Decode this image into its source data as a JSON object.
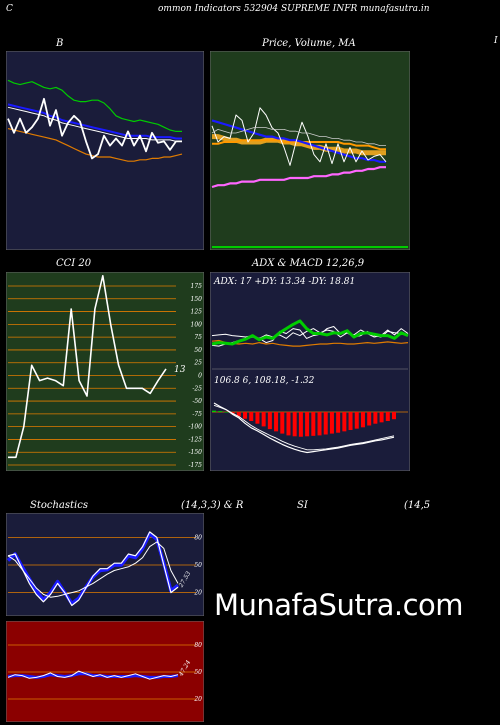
{
  "header": {
    "left": "C",
    "title": "ommon  Indicators 532904  SUPREME INFR munafasutra.in",
    "right": "I"
  },
  "labels": {
    "bb": "B",
    "price": "Price,  Volume,  MA",
    "cci": "CCI 20",
    "adx_macd": "ADX  & MACD 12,26,9",
    "stoch_left": "Stochastics",
    "stoch_mid": "(14,3,3) & R",
    "rsi_mid": "SI",
    "rsi_right": "(14,5"
  },
  "watermark": "MunafaSutra.com",
  "colors": {
    "navy": "#1a1c3a",
    "dark_green": "#1f3c1d",
    "dark_red": "#8b0000",
    "orange": "#e07b00",
    "green_line": "#00cc00",
    "blue_line": "#1a1aff",
    "white": "#ffffff"
  },
  "chart_data": [
    {
      "type": "line",
      "panel": "bollinger",
      "title": "B",
      "ylim": [
        0,
        100
      ],
      "series": [
        {
          "values": [
            85,
            83,
            82,
            83,
            84,
            82,
            80,
            79,
            80,
            78,
            74,
            71,
            70,
            70,
            71,
            71,
            69,
            65,
            60,
            58,
            57,
            56,
            57,
            56,
            55,
            54,
            52,
            50,
            49,
            49
          ]
        },
        {
          "values": [
            68,
            67,
            66,
            65,
            64,
            63,
            62,
            60,
            59,
            57,
            56,
            55,
            54,
            53,
            52,
            51,
            50,
            49,
            48,
            47,
            46,
            46,
            46,
            46,
            45,
            45,
            45,
            45,
            44,
            44
          ]
        },
        {
          "values": [
            66,
            65,
            64,
            63,
            62,
            61,
            60,
            58,
            57,
            55,
            54,
            53,
            52,
            51,
            50,
            49,
            48,
            47,
            46,
            45,
            44,
            44,
            44,
            44,
            43,
            43,
            43,
            43,
            42,
            42
          ]
        },
        {
          "values": [
            51,
            50,
            49,
            48,
            47,
            46,
            45,
            44,
            43,
            41,
            39,
            37,
            35,
            33,
            32,
            31,
            31,
            31,
            30,
            29,
            28,
            28,
            29,
            29,
            30,
            30,
            31,
            31,
            32,
            33
          ]
        },
        {
          "values": [
            58,
            48,
            58,
            48,
            52,
            58,
            72,
            53,
            64,
            46,
            55,
            60,
            56,
            42,
            30,
            33,
            46,
            39,
            44,
            39,
            49,
            39,
            46,
            35,
            48,
            41,
            42,
            36,
            42,
            42
          ]
        }
      ]
    },
    {
      "type": "line",
      "panel": "price",
      "title": "Price,  Volume,  MA",
      "ylim": [
        0,
        100
      ],
      "series": [
        {
          "values": [
            58,
            58,
            57,
            56,
            56,
            55,
            55,
            55,
            55,
            56,
            56,
            56,
            55,
            55,
            54,
            54,
            53,
            52,
            52,
            51,
            51,
            51,
            50,
            50,
            50,
            49,
            49,
            49,
            49,
            49
          ]
        },
        {
          "values": [
            54,
            54,
            55,
            55,
            55,
            56,
            56,
            56,
            56,
            56,
            56,
            56,
            55,
            55,
            55,
            55,
            55,
            55,
            55,
            55,
            55,
            55,
            54,
            54,
            53,
            53,
            53,
            52,
            51,
            51
          ]
        },
        {
          "values": [
            67,
            66,
            65,
            64,
            63,
            62,
            61,
            60,
            59,
            58,
            58,
            57,
            57,
            56,
            56,
            55,
            54,
            53,
            52,
            51,
            50,
            49,
            48,
            47,
            46,
            46,
            45,
            45,
            44,
            44
          ]
        },
        {
          "values": [
            30,
            31,
            31,
            32,
            32,
            33,
            33,
            33,
            34,
            34,
            34,
            34,
            34,
            35,
            35,
            35,
            35,
            36,
            36,
            36,
            37,
            37,
            38,
            38,
            39,
            39,
            40,
            40,
            41,
            41
          ]
        },
        {
          "values": [
            64,
            55,
            58,
            57,
            70,
            67,
            55,
            60,
            74,
            70,
            63,
            60,
            52,
            42,
            55,
            66,
            58,
            48,
            44,
            54,
            43,
            54,
            44,
            52,
            44,
            50,
            45,
            47,
            48,
            44
          ]
        },
        {
          "values": [
            60,
            62,
            61,
            60,
            60,
            61,
            62,
            63,
            63,
            63,
            62,
            62,
            62,
            61,
            61,
            60,
            60,
            59,
            58,
            58,
            57,
            57,
            56,
            56,
            55,
            55,
            54,
            54,
            53,
            53
          ]
        }
      ]
    },
    {
      "type": "line",
      "panel": "cci",
      "title": "CCI 20",
      "ylim": [
        -175,
        175
      ],
      "y_ticks": [
        175,
        150,
        125,
        100,
        75,
        50,
        25,
        0,
        -25,
        -50,
        -75,
        -100,
        -125,
        -150,
        -175
      ],
      "last_value_label": "13",
      "series": [
        {
          "values": [
            -160,
            -160,
            -100,
            20,
            -10,
            -5,
            -10,
            -20,
            130,
            -10,
            -40,
            130,
            195,
            100,
            20,
            -25,
            -25,
            -25,
            -35,
            -10,
            13
          ]
        }
      ]
    },
    {
      "type": "line",
      "panel": "adx",
      "title": "ADX  & MACD 12,26,9",
      "ylim": [
        0,
        100
      ],
      "readout": {
        "adx": "17",
        "plus_di": "13.34",
        "minus_di": "18.81"
      },
      "readout_text": "ADX: 17 +DY: 13.34  -DY: 18.81",
      "series": [
        {
          "values": [
            44,
            45,
            42,
            41,
            40,
            41,
            40,
            42,
            40,
            41,
            39,
            38,
            37,
            37,
            38,
            39,
            40,
            40,
            41,
            41,
            40,
            40,
            41,
            42,
            41,
            42,
            43,
            42,
            41,
            42
          ]
        },
        {
          "values": [
            52,
            53,
            54,
            52,
            51,
            50,
            52,
            48,
            53,
            50,
            53,
            48,
            56,
            52,
            58,
            62,
            56,
            60,
            58,
            50,
            56,
            53,
            60,
            55,
            50,
            52,
            60,
            53,
            62,
            55
          ]
        },
        {
          "values": [
            38,
            37,
            40,
            42,
            45,
            48,
            50,
            48,
            42,
            45,
            58,
            55,
            62,
            60,
            48,
            52,
            54,
            62,
            65,
            55,
            56,
            50,
            52,
            58,
            52,
            50,
            58,
            56,
            55,
            52
          ]
        },
        {
          "values": [
            40,
            42,
            41,
            40,
            44,
            47,
            52,
            46,
            50,
            48,
            56,
            62,
            68,
            73,
            62,
            55,
            55,
            53,
            56,
            55,
            59,
            50,
            55,
            56,
            54,
            52,
            52,
            48,
            56,
            52
          ]
        }
      ]
    },
    {
      "type": "bar",
      "panel": "macd",
      "readout_text": "106.8                   6,  108.18,  -1.32",
      "ylim": [
        -10,
        4
      ],
      "series": [
        {
          "values": [
            0.3,
            0.2,
            0,
            -0.5,
            -1,
            -1.5,
            -2,
            -2.6,
            -3.2,
            -3.8,
            -4.3,
            -4.8,
            -5.2,
            -5.4,
            -5.5,
            -5.4,
            -5.3,
            -5.2,
            -5,
            -4.8,
            -4.6,
            -4.3,
            -4,
            -3.7,
            -3.4,
            -3,
            -2.6,
            -2.3,
            -2,
            -1.6
          ]
        },
        {
          "values": [
            2,
            1.2,
            0.5,
            -0.5,
            -1.3,
            -2.5,
            -3.5,
            -4.2,
            -5,
            -5.8,
            -6.5,
            -7.2,
            -7.8,
            -8.3,
            -8.7,
            -9,
            -8.8,
            -8.6,
            -8.4,
            -8.2,
            -8,
            -7.7,
            -7.4,
            -7.2,
            -7,
            -6.7,
            -6.4,
            -6.2,
            -5.9,
            -5.6
          ]
        },
        {
          "values": [
            1.5,
            1,
            0.5,
            -0.3,
            -1,
            -2,
            -3,
            -3.8,
            -4.5,
            -5.2,
            -5.8,
            -6.5,
            -7.1,
            -7.6,
            -8,
            -8.4,
            -8.4,
            -8.3,
            -8.2,
            -8,
            -7.8,
            -7.5,
            -7.2,
            -7,
            -6.8,
            -6.5,
            -6.2,
            -5.9,
            -5.6,
            -5.3
          ]
        }
      ]
    },
    {
      "type": "line",
      "panel": "stochastics",
      "title": "Stochastics",
      "ylim": [
        0,
        100
      ],
      "y_ticks": [
        80,
        50,
        20
      ],
      "last_value_label": "27.53",
      "series": [
        {
          "values": [
            55,
            62,
            48,
            35,
            22,
            12,
            20,
            32,
            20,
            8,
            14,
            26,
            37,
            44,
            45,
            50,
            50,
            60,
            58,
            68,
            84,
            78,
            52,
            22,
            28
          ]
        },
        {
          "values": [
            60,
            55,
            45,
            35,
            25,
            18,
            15,
            16,
            18,
            20,
            22,
            26,
            30,
            35,
            40,
            44,
            46,
            48,
            52,
            58,
            70,
            75,
            68,
            44,
            30
          ]
        },
        {
          "values": [
            60,
            62,
            46,
            30,
            18,
            10,
            18,
            30,
            20,
            6,
            12,
            25,
            38,
            46,
            46,
            52,
            52,
            62,
            60,
            70,
            86,
            80,
            50,
            20,
            26
          ]
        }
      ]
    },
    {
      "type": "line",
      "panel": "rsi",
      "title": "SI",
      "ylim": [
        0,
        100
      ],
      "y_ticks": [
        80,
        50,
        20
      ],
      "last_value_label": "47.24",
      "series": [
        {
          "values": [
            44,
            47,
            46,
            43,
            44,
            46,
            49,
            45,
            44,
            46,
            51,
            48,
            45,
            47,
            44,
            46,
            44,
            46,
            48,
            45,
            42,
            44,
            46,
            45,
            47
          ]
        },
        {
          "values": [
            45,
            46,
            46,
            45,
            44,
            45,
            47,
            46,
            45,
            46,
            48,
            48,
            46,
            46,
            45,
            45,
            45,
            45,
            46,
            45,
            44,
            44,
            45,
            45,
            46
          ]
        }
      ]
    }
  ]
}
